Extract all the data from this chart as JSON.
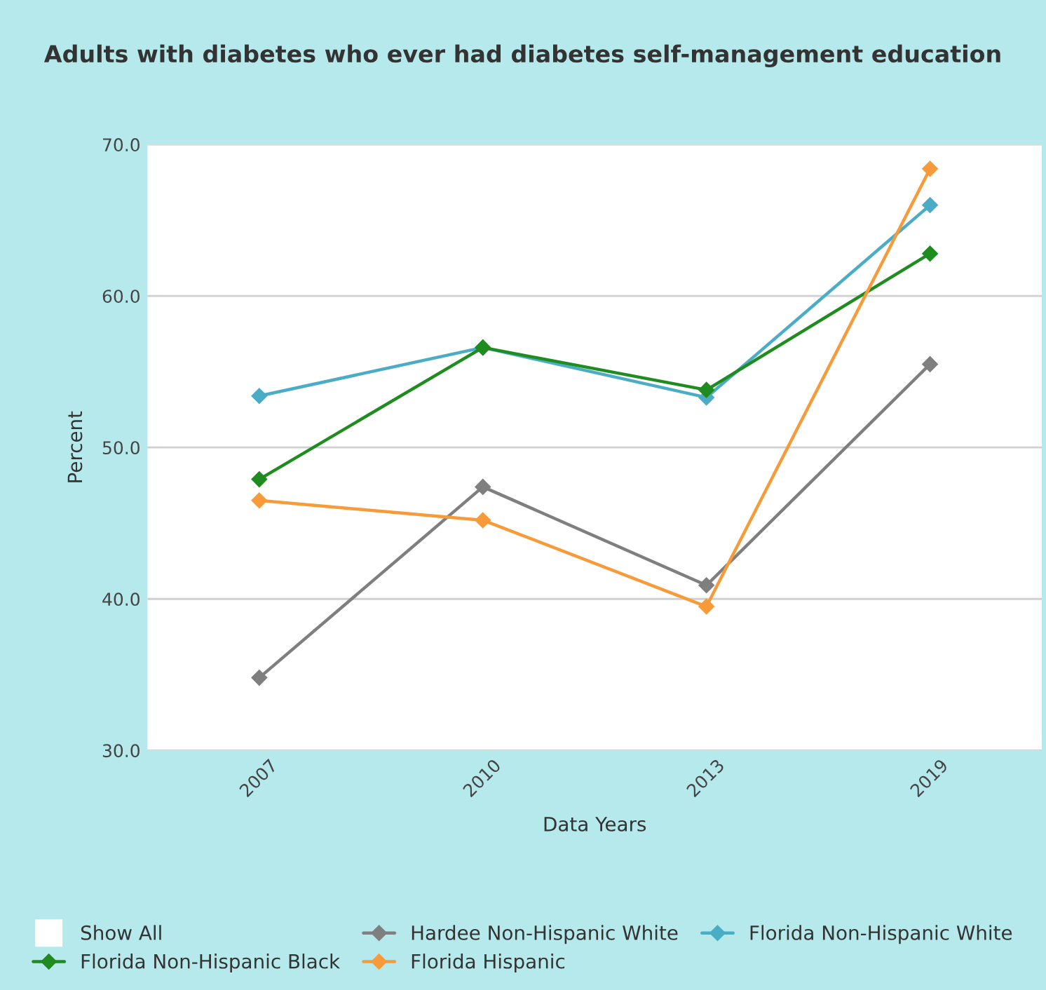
{
  "chart_data": {
    "type": "line",
    "title": "Adults with diabetes who ever had diabetes self-management education",
    "xlabel": "Data Years",
    "ylabel": "Percent",
    "categories": [
      "2007",
      "2010",
      "2013",
      "2019"
    ],
    "series": [
      {
        "name": "Show All",
        "type": "scatter",
        "marker": "square",
        "color": "#ffffff",
        "values": [
          null,
          null,
          null,
          null
        ]
      },
      {
        "name": "Hardee Non-Hispanic White",
        "color": "#7f7f7f",
        "values": [
          34.8,
          47.4,
          40.9,
          55.5
        ]
      },
      {
        "name": "Florida Non-Hispanic White",
        "color": "#4bacc6",
        "values": [
          53.4,
          56.6,
          53.3,
          66.0
        ]
      },
      {
        "name": "Florida Non-Hispanic Black",
        "color": "#1e8c1e",
        "values": [
          47.9,
          56.6,
          53.8,
          62.8
        ]
      },
      {
        "name": "Florida Hispanic",
        "color": "#f79b3a",
        "values": [
          46.5,
          45.2,
          39.5,
          68.4
        ]
      }
    ],
    "ylim": [
      30,
      70
    ],
    "yticks": [
      {
        "value": 30,
        "label": "30.0"
      },
      {
        "value": 40,
        "label": "40.0"
      },
      {
        "value": 50,
        "label": "50.0"
      },
      {
        "value": 60,
        "label": "60.0"
      },
      {
        "value": 70,
        "label": "70.0"
      }
    ],
    "grid": "y",
    "legend": "bottom",
    "marker": "diamond",
    "line_style": "solid"
  }
}
